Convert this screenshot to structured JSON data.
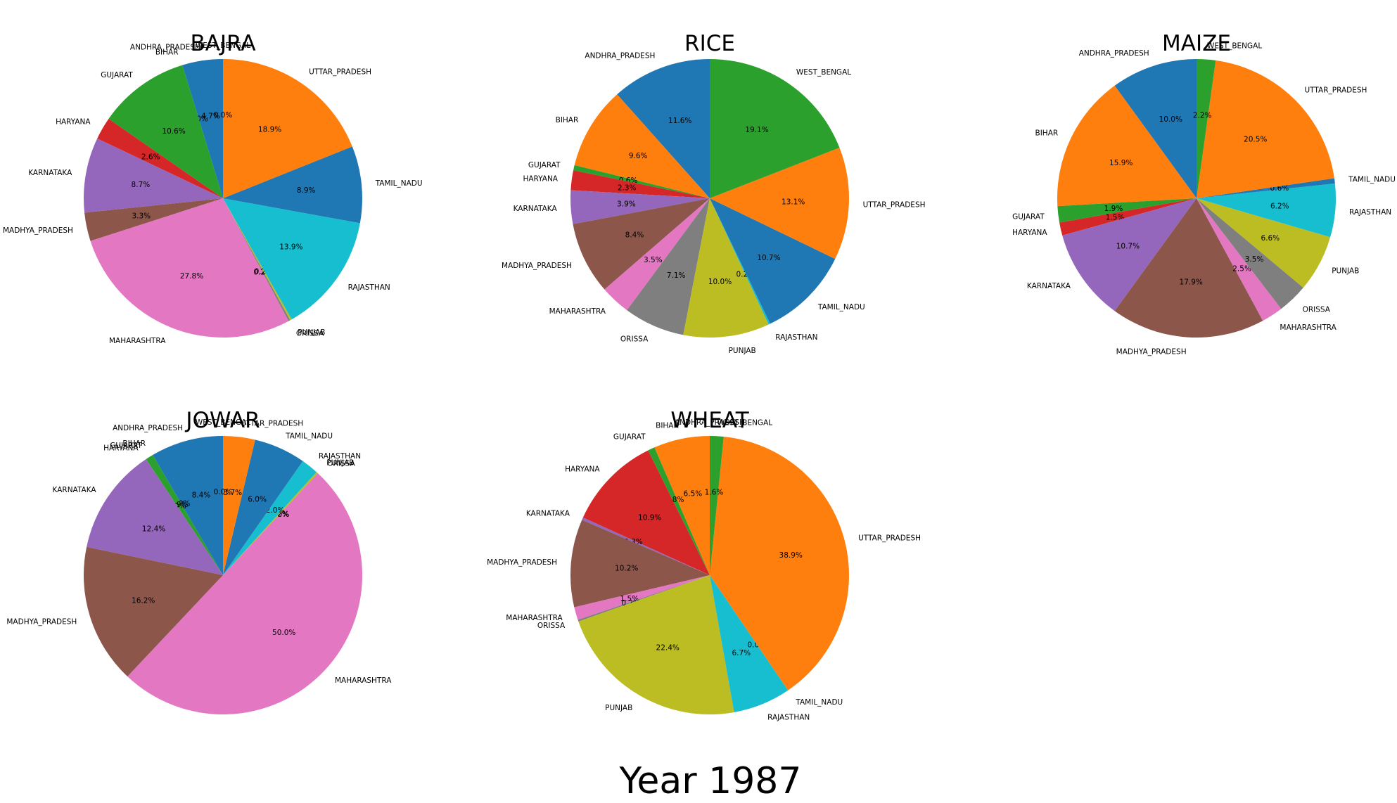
{
  "figure": {
    "suptitle": "Year 1987"
  },
  "colors": [
    "#1f77b4",
    "#ff7f0e",
    "#2ca02c",
    "#d62728",
    "#9467bd",
    "#8c564b",
    "#e377c2",
    "#7f7f7f",
    "#bcbd22",
    "#17becf"
  ],
  "chart_data": [
    {
      "type": "pie",
      "title": "BAJRA",
      "start_angle_deg": 90,
      "direction": "counterclockwise",
      "slices": [
        {
          "label": "ANDHRA_PRADESH",
          "value": 4.7,
          "pct": "4.7%"
        },
        {
          "label": "BIHAR",
          "value": 0.0,
          "pct": "0.0%"
        },
        {
          "label": "GUJARAT",
          "value": 10.6,
          "pct": "10.6%"
        },
        {
          "label": "HARYANA",
          "value": 2.6,
          "pct": "2.6%"
        },
        {
          "label": "KARNATAKA",
          "value": 8.7,
          "pct": "8.7%"
        },
        {
          "label": "MADHYA_PRADESH",
          "value": 3.3,
          "pct": "3.3%"
        },
        {
          "label": "MAHARASHTRA",
          "value": 27.8,
          "pct": "27.8%"
        },
        {
          "label": "ORISSA",
          "value": 0.2,
          "pct": "0.2%"
        },
        {
          "label": "PUNJAB",
          "value": 0.2,
          "pct": "0.2%"
        },
        {
          "label": "RAJASTHAN",
          "value": 13.9,
          "pct": "13.9%"
        },
        {
          "label": "TAMIL_NADU",
          "value": 8.9,
          "pct": "8.9%"
        },
        {
          "label": "UTTAR_PRADESH",
          "value": 18.9,
          "pct": "18.9%"
        },
        {
          "label": "WEST_BENGAL",
          "value": 0.0,
          "pct": "0.0%"
        }
      ]
    },
    {
      "type": "pie",
      "title": "RICE",
      "start_angle_deg": 90,
      "direction": "counterclockwise",
      "slices": [
        {
          "label": "ANDHRA_PRADESH",
          "value": 11.6,
          "pct": "11.6%"
        },
        {
          "label": "BIHAR",
          "value": 9.6,
          "pct": "9.6%"
        },
        {
          "label": "GUJARAT",
          "value": 0.6,
          "pct": "0.6%"
        },
        {
          "label": "HARYANA",
          "value": 2.3,
          "pct": "2.3%"
        },
        {
          "label": "KARNATAKA",
          "value": 3.9,
          "pct": "3.9%"
        },
        {
          "label": "MADHYA_PRADESH",
          "value": 8.4,
          "pct": "8.4%"
        },
        {
          "label": "MAHARASHTRA",
          "value": 3.5,
          "pct": "3.5%"
        },
        {
          "label": "ORISSA",
          "value": 7.1,
          "pct": "7.1%"
        },
        {
          "label": "PUNJAB",
          "value": 10.0,
          "pct": "10.0%"
        },
        {
          "label": "RAJASTHAN",
          "value": 0.2,
          "pct": "0.2%"
        },
        {
          "label": "TAMIL_NADU",
          "value": 10.7,
          "pct": "10.7%"
        },
        {
          "label": "UTTAR_PRADESH",
          "value": 13.1,
          "pct": "13.1%"
        },
        {
          "label": "WEST_BENGAL",
          "value": 19.1,
          "pct": "19.1%"
        }
      ]
    },
    {
      "type": "pie",
      "title": "MAIZE",
      "start_angle_deg": 90,
      "direction": "counterclockwise",
      "slices": [
        {
          "label": "ANDHRA_PRADESH",
          "value": 10.0,
          "pct": "10.0%"
        },
        {
          "label": "BIHAR",
          "value": 15.9,
          "pct": "15.9%"
        },
        {
          "label": "GUJARAT",
          "value": 1.9,
          "pct": "1.9%"
        },
        {
          "label": "HARYANA",
          "value": 1.5,
          "pct": "1.5%"
        },
        {
          "label": "KARNATAKA",
          "value": 10.7,
          "pct": "10.7%"
        },
        {
          "label": "MADHYA_PRADESH",
          "value": 17.9,
          "pct": "17.9%"
        },
        {
          "label": "MAHARASHTRA",
          "value": 2.5,
          "pct": "2.5%"
        },
        {
          "label": "ORISSA",
          "value": 3.5,
          "pct": "3.5%"
        },
        {
          "label": "PUNJAB",
          "value": 6.6,
          "pct": "6.6%"
        },
        {
          "label": "RAJASTHAN",
          "value": 6.2,
          "pct": "6.2%"
        },
        {
          "label": "TAMIL_NADU",
          "value": 0.6,
          "pct": "0.6%"
        },
        {
          "label": "UTTAR_PRADESH",
          "value": 20.5,
          "pct": "20.5%"
        },
        {
          "label": "WEST_BENGAL",
          "value": 2.2,
          "pct": "2.2%"
        }
      ]
    },
    {
      "type": "pie",
      "title": "JOWAR",
      "start_angle_deg": 90,
      "direction": "counterclockwise",
      "slices": [
        {
          "label": "ANDHRA_PRADESH",
          "value": 8.4,
          "pct": "8.4%"
        },
        {
          "label": "BIHAR",
          "value": 0.0,
          "pct": "0.0%"
        },
        {
          "label": "GUJARAT",
          "value": 0.9,
          "pct": "0.9%"
        },
        {
          "label": "HARYANA",
          "value": 0.0,
          "pct": "0.0%"
        },
        {
          "label": "KARNATAKA",
          "value": 12.4,
          "pct": "12.4%"
        },
        {
          "label": "MADHYA_PRADESH",
          "value": 16.2,
          "pct": "16.2%"
        },
        {
          "label": "MAHARASHTRA",
          "value": 50.0,
          "pct": "50.0%"
        },
        {
          "label": "ORISSA",
          "value": 0.0,
          "pct": "0.0%"
        },
        {
          "label": "PUNJAB",
          "value": 0.2,
          "pct": "0.2%"
        },
        {
          "label": "RAJASTHAN",
          "value": 2.0,
          "pct": "2.0%"
        },
        {
          "label": "TAMIL_NADU",
          "value": 6.0,
          "pct": "6.0%"
        },
        {
          "label": "UTTAR_PRADESH",
          "value": 3.7,
          "pct": "3.7%"
        },
        {
          "label": "WEST_BENGAL",
          "value": 0.0,
          "pct": "0.0%"
        }
      ]
    },
    {
      "type": "pie",
      "title": "WHEAT",
      "start_angle_deg": 90,
      "direction": "counterclockwise",
      "slices": [
        {
          "label": "ANDHRA_PRADESH",
          "value": 0.0,
          "pct": "0.0%"
        },
        {
          "label": "BIHAR",
          "value": 6.5,
          "pct": "6.5%"
        },
        {
          "label": "GUJARAT",
          "value": 0.8,
          "pct": "0.8%"
        },
        {
          "label": "HARYANA",
          "value": 10.9,
          "pct": "10.9%"
        },
        {
          "label": "KARNATAKA",
          "value": 0.3,
          "pct": "0.3%"
        },
        {
          "label": "MADHYA_PRADESH",
          "value": 10.2,
          "pct": "10.2%"
        },
        {
          "label": "MAHARASHTRA",
          "value": 1.5,
          "pct": "1.5%"
        },
        {
          "label": "ORISSA",
          "value": 0.2,
          "pct": "0.2%"
        },
        {
          "label": "PUNJAB",
          "value": 22.4,
          "pct": "22.4%"
        },
        {
          "label": "RAJASTHAN",
          "value": 6.7,
          "pct": "6.7%"
        },
        {
          "label": "TAMIL_NADU",
          "value": 0.0,
          "pct": "0.0%"
        },
        {
          "label": "UTTAR_PRADESH",
          "value": 38.9,
          "pct": "38.9%"
        },
        {
          "label": "WEST_BENGAL",
          "value": 1.6,
          "pct": "1.6%"
        }
      ]
    }
  ]
}
